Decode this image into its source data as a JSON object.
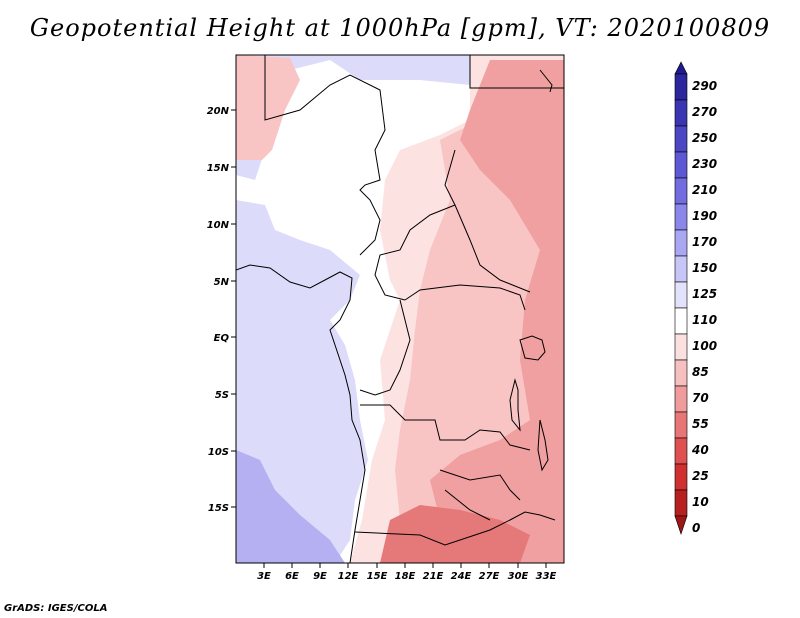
{
  "title": "Geopotential Height at 1000hPa [gpm], VT: 2020100809",
  "footer": "GrADS: IGES/COLA",
  "map": {
    "lat_labels": [
      "20N",
      "15N",
      "10N",
      "5N",
      "EQ",
      "5S",
      "10S",
      "15S"
    ],
    "lon_labels": [
      "3E",
      "6E",
      "9E",
      "12E",
      "15E",
      "18E",
      "21E",
      "24E",
      "27E",
      "30E",
      "33E"
    ]
  },
  "colorbar": {
    "levels": [
      "290",
      "270",
      "250",
      "230",
      "210",
      "190",
      "170",
      "150",
      "125",
      "110",
      "100",
      "85",
      "70",
      "55",
      "40",
      "25",
      "10",
      "0"
    ],
    "colors": [
      "#1f1a8f",
      "#2b259e",
      "#3a35b3",
      "#4b46c4",
      "#5d58d3",
      "#716ce0",
      "#8a86ea",
      "#a9a6f2",
      "#c8c6f6",
      "#e2e2fb",
      "#ffffff",
      "#fbe0e0",
      "#f6c0c0",
      "#f09c9c",
      "#e87676",
      "#df5050",
      "#d03030",
      "#b82020",
      "#9e1616"
    ]
  },
  "colors": {
    "ocean_purple": "#b4b0f2",
    "ocean_lavender": "#dcdcfa",
    "land_white": "#ffffff",
    "pink_light": "#fde2e2",
    "pink_mid": "#f8c4c4",
    "salmon": "#f0a0a0",
    "red": "#e57878"
  }
}
